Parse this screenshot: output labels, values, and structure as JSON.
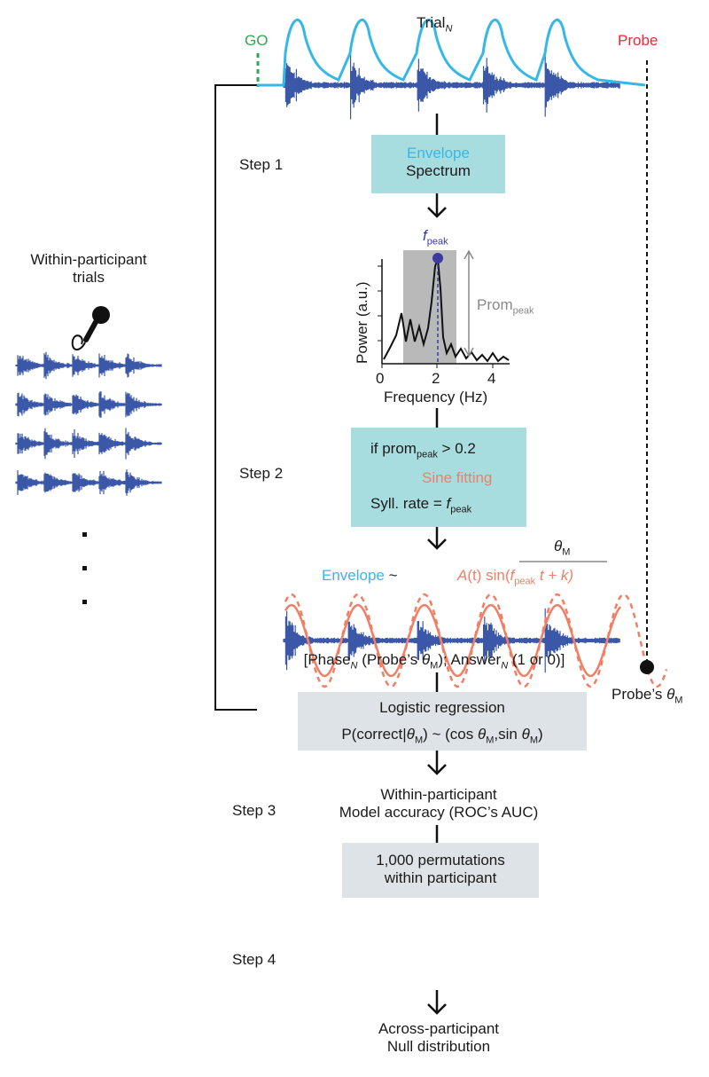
{
  "left": {
    "title_line1": "Within-participant",
    "title_line2": "trials",
    "trial_rows": 4
  },
  "top": {
    "go_label": "GO",
    "trial_label": "Trial",
    "trial_sub": "N",
    "probe_label": "Probe"
  },
  "steps": {
    "step1": "Step 1",
    "step2": "Step 2",
    "step3": "Step 3",
    "step4": "Step 4"
  },
  "box1": {
    "line1": "Envelope",
    "line2": "Spectrum"
  },
  "spectrum": {
    "fpeak": "f",
    "fpeak_sub": "peak",
    "prom": "Prom",
    "prom_sub": "peak",
    "ylabel": "Power (a.u.)",
    "xlabel": "Frequency (Hz)",
    "xticks": [
      "0",
      "2",
      "4"
    ]
  },
  "box2": {
    "cond_a": "if prom",
    "cond_sub": "peak",
    "cond_b": " > 0.2",
    "sine": "Sine fitting",
    "rate_a": "Syll. rate = ",
    "rate_f": "f",
    "rate_sub": "peak"
  },
  "fit": {
    "theta": "θ",
    "theta_sub": "M",
    "envelope": "Envelope",
    "tilde": " ~",
    "formula_a": "A",
    "formula_t": "(t) sin(",
    "formula_f": "f",
    "formula_sub": "peak",
    "formula_end": " t + k)",
    "probe_theta": "Probe’s ",
    "probe_theta_sym": "θ",
    "probe_theta_sub": "M"
  },
  "phase_line": {
    "a": "[Phase",
    "n1": "N",
    "b": " (Probe’s ",
    "theta": "θ",
    "m1": "M",
    "c": "); Answer",
    "n2": "N",
    "d": " (1 or 0)]"
  },
  "box3": {
    "line1": "Logistic regression",
    "p_a": "P(correct|",
    "theta": "θ",
    "m": "M",
    "p_b": ") ~ (cos ",
    "theta2": "θ",
    "m2": "M",
    "p_c": ",sin ",
    "theta3": "θ",
    "m3": "M",
    "p_d": ")"
  },
  "accuracy": {
    "line1": "Within-participant",
    "line2": "Model accuracy (ROC’s AUC)"
  },
  "box4": {
    "line1": "1,000 permutations",
    "line2": "within participant"
  },
  "final": {
    "line1": "Across-participant",
    "line2": "Null distribution"
  },
  "colors": {
    "waveform": "#3a57a8",
    "envelope": "#35b8e6",
    "go": "#2fa84f",
    "probe": "#e8283a",
    "salmon": "#f07f66",
    "teal_box": "#a8dde0",
    "grey_box": "#dde3e6",
    "peak_dot": "#3a3aa0"
  }
}
